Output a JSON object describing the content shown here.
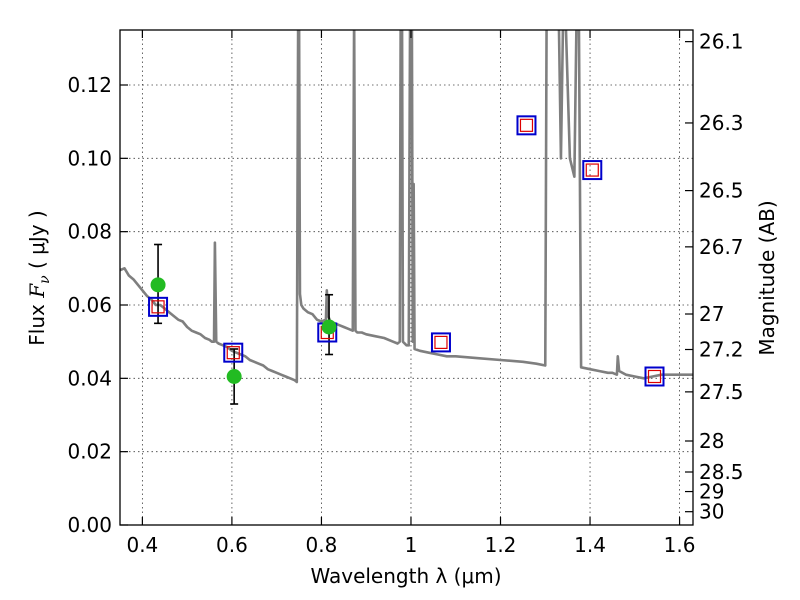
{
  "chart_data": {
    "type": "scatter",
    "xlabel": "Wavelength  λ (μm)",
    "ylabel": "Flux  F_ν  ( μJy )",
    "ylabel_parts": {
      "lead": "Flux  ",
      "symbol": "F",
      "sub": "ν",
      "tail": "  ( μJy )"
    },
    "y2label": "Magnitude (AB)",
    "xlim": [
      0.35,
      1.63
    ],
    "ylim": [
      0.0,
      0.135
    ],
    "grid": true,
    "x_ticks": [
      0.4,
      0.6,
      0.8,
      1.0,
      1.2,
      1.4,
      1.6
    ],
    "x_tick_labels": [
      "0.4",
      "0.6",
      "0.8",
      "1",
      "1.2",
      "1.4",
      "1.6"
    ],
    "y_ticks": [
      0.0,
      0.02,
      0.04,
      0.06,
      0.08,
      0.1,
      0.12
    ],
    "y_tick_labels": [
      "0.00",
      "0.02",
      "0.04",
      "0.06",
      "0.08",
      "0.10",
      "0.12"
    ],
    "mag_ticks": [
      26.1,
      26.3,
      26.5,
      26.7,
      27,
      27.2,
      27.5,
      28,
      28.5,
      29,
      30
    ],
    "mag_tick_labels": [
      "26.1",
      "26.3",
      "26.5",
      "26.7",
      "27",
      "27.2",
      "27.5",
      "28",
      "28.5",
      "29",
      "30"
    ],
    "colors": {
      "spectrum": "#7f7f7f",
      "observed": "#22bb22",
      "model_square_outer": "#0000cc",
      "model_square_inner": "#dd0000",
      "errorbar": "#000000"
    },
    "series": [
      {
        "kind": "spectrum",
        "points": [
          [
            0.35,
            0.0695
          ],
          [
            0.36,
            0.07
          ],
          [
            0.37,
            0.068
          ],
          [
            0.38,
            0.067
          ],
          [
            0.39,
            0.0655
          ],
          [
            0.4,
            0.064
          ],
          [
            0.41,
            0.0625
          ],
          [
            0.42,
            0.0615
          ],
          [
            0.43,
            0.06
          ],
          [
            0.44,
            0.06
          ],
          [
            0.45,
            0.059
          ],
          [
            0.46,
            0.058
          ],
          [
            0.47,
            0.057
          ],
          [
            0.48,
            0.056
          ],
          [
            0.49,
            0.0555
          ],
          [
            0.5,
            0.054
          ],
          [
            0.51,
            0.053
          ],
          [
            0.52,
            0.0525
          ],
          [
            0.53,
            0.052
          ],
          [
            0.54,
            0.051
          ],
          [
            0.55,
            0.0505
          ],
          [
            0.555,
            0.05
          ],
          [
            0.56,
            0.05
          ],
          [
            0.562,
            0.077
          ],
          [
            0.565,
            0.05
          ],
          [
            0.57,
            0.0495
          ],
          [
            0.58,
            0.049
          ],
          [
            0.59,
            0.0485
          ],
          [
            0.6,
            0.0475
          ],
          [
            0.61,
            0.047
          ],
          [
            0.62,
            0.0465
          ],
          [
            0.63,
            0.046
          ],
          [
            0.64,
            0.045
          ],
          [
            0.65,
            0.0445
          ],
          [
            0.66,
            0.044
          ],
          [
            0.67,
            0.0435
          ],
          [
            0.68,
            0.0425
          ],
          [
            0.69,
            0.042
          ],
          [
            0.7,
            0.0415
          ],
          [
            0.71,
            0.041
          ],
          [
            0.72,
            0.0405
          ],
          [
            0.73,
            0.04
          ],
          [
            0.74,
            0.0395
          ],
          [
            0.745,
            0.039
          ],
          [
            0.748,
            0.14
          ],
          [
            0.75,
            0.14
          ],
          [
            0.752,
            0.063
          ],
          [
            0.755,
            0.06
          ],
          [
            0.76,
            0.059
          ],
          [
            0.77,
            0.058
          ],
          [
            0.78,
            0.0575
          ],
          [
            0.79,
            0.056
          ],
          [
            0.8,
            0.0555
          ],
          [
            0.81,
            0.056
          ],
          [
            0.812,
            0.064
          ],
          [
            0.815,
            0.057
          ],
          [
            0.82,
            0.0555
          ],
          [
            0.83,
            0.055
          ],
          [
            0.84,
            0.0545
          ],
          [
            0.85,
            0.054
          ],
          [
            0.86,
            0.0535
          ],
          [
            0.87,
            0.053
          ],
          [
            0.873,
            0.14
          ],
          [
            0.876,
            0.053
          ],
          [
            0.88,
            0.0525
          ],
          [
            0.89,
            0.0525
          ],
          [
            0.9,
            0.052
          ],
          [
            0.92,
            0.0515
          ],
          [
            0.94,
            0.051
          ],
          [
            0.96,
            0.05
          ],
          [
            0.97,
            0.0495
          ],
          [
            0.975,
            0.05
          ],
          [
            0.977,
            0.14
          ],
          [
            0.98,
            0.14
          ],
          [
            0.982,
            0.05
          ],
          [
            0.99,
            0.049
          ],
          [
            0.995,
            0.049
          ],
          [
            0.998,
            0.14
          ],
          [
            1.002,
            0.14
          ],
          [
            1.004,
            0.05
          ],
          [
            1.006,
            0.093
          ],
          [
            1.008,
            0.048
          ],
          [
            1.02,
            0.0475
          ],
          [
            1.04,
            0.047
          ],
          [
            1.06,
            0.0465
          ],
          [
            1.08,
            0.046
          ],
          [
            1.1,
            0.046
          ],
          [
            1.15,
            0.0455
          ],
          [
            1.2,
            0.045
          ],
          [
            1.25,
            0.0445
          ],
          [
            1.28,
            0.044
          ],
          [
            1.3,
            0.0435
          ],
          [
            1.303,
            0.14
          ],
          [
            1.33,
            0.14
          ],
          [
            1.335,
            0.1
          ],
          [
            1.34,
            0.14
          ],
          [
            1.345,
            0.14
          ],
          [
            1.355,
            0.1
          ],
          [
            1.365,
            0.095
          ],
          [
            1.37,
            0.14
          ],
          [
            1.375,
            0.14
          ],
          [
            1.38,
            0.043
          ],
          [
            1.4,
            0.0425
          ],
          [
            1.42,
            0.042
          ],
          [
            1.44,
            0.0415
          ],
          [
            1.45,
            0.0415
          ],
          [
            1.46,
            0.041
          ],
          [
            1.462,
            0.046
          ],
          [
            1.465,
            0.042
          ],
          [
            1.48,
            0.041
          ],
          [
            1.5,
            0.0405
          ],
          [
            1.52,
            0.04
          ],
          [
            1.54,
            0.0405
          ],
          [
            1.56,
            0.041
          ],
          [
            1.58,
            0.041
          ],
          [
            1.6,
            0.041
          ],
          [
            1.63,
            0.041
          ]
        ]
      },
      {
        "kind": "model_photometry",
        "points": [
          [
            0.435,
            0.0595
          ],
          [
            0.603,
            0.047
          ],
          [
            0.813,
            0.0525
          ],
          [
            1.067,
            0.0498
          ],
          [
            1.258,
            0.109
          ],
          [
            1.405,
            0.0968
          ],
          [
            1.544,
            0.0405
          ]
        ]
      },
      {
        "kind": "observed_photometry",
        "points": [
          {
            "x": 0.435,
            "y": 0.0655,
            "lo": 0.055,
            "hi": 0.0765
          },
          {
            "x": 0.605,
            "y": 0.0405,
            "lo": 0.033,
            "hi": 0.048
          },
          {
            "x": 0.817,
            "y": 0.054,
            "lo": 0.0465,
            "hi": 0.0628
          }
        ]
      }
    ]
  }
}
